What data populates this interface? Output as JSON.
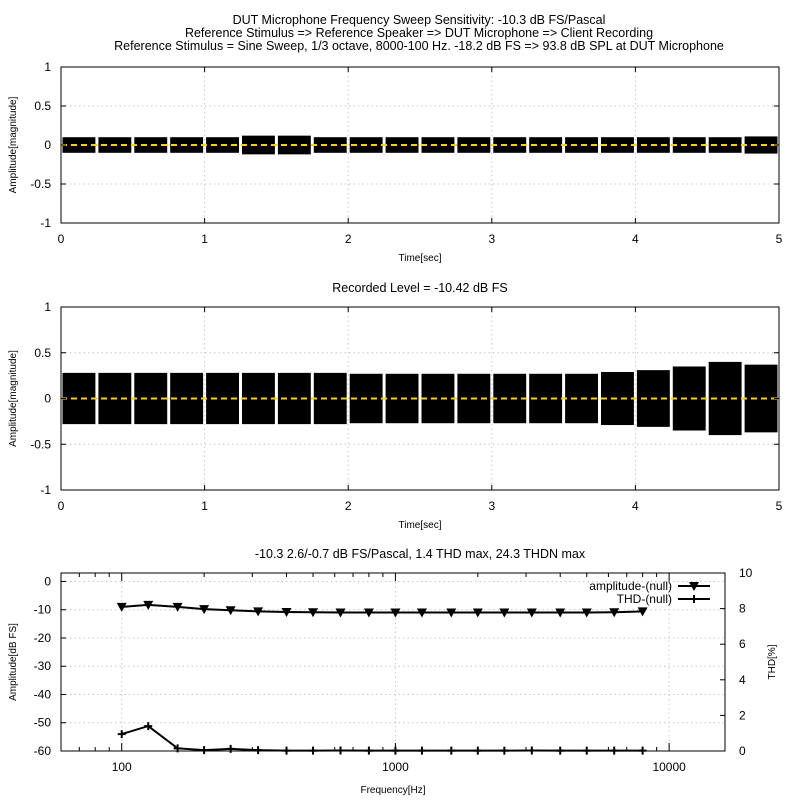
{
  "page_title": [
    "DUT Microphone Frequency Sweep Sensitivity: -10.3 dB FS/Pascal",
    "Reference Stimulus => Reference Speaker => DUT Microphone => Client Recording",
    "Reference Stimulus = Sine Sweep, 1/3 octave, 8000-100 Hz. -18.2 dB FS => 93.8 dB SPL at DUT Microphone"
  ],
  "colors": {
    "signal": "#000000",
    "zero_line": "#ffd000",
    "grid": "#c8c8c8"
  },
  "chart_data": [
    {
      "type": "line",
      "title": "",
      "xlabel": "Time[sec]",
      "ylabel": "Amplitude[magnitude]",
      "xlim": [
        0,
        5
      ],
      "ylim": [
        -1,
        1
      ],
      "xticks": [
        0,
        1,
        2,
        3,
        4,
        5
      ],
      "yticks": [
        -1,
        -0.5,
        0,
        0.5,
        1
      ],
      "grid": true,
      "envelope": {
        "description_of_marks": "sine burst bursts, one per 1/3 octave step",
        "segment_starts": [
          0,
          0.25,
          0.5,
          0.75,
          1.0,
          1.25,
          1.5,
          1.75,
          2.0,
          2.25,
          2.5,
          2.75,
          3.0,
          3.25,
          3.5,
          3.75,
          4.0,
          4.25,
          4.5,
          4.75
        ],
        "segment_amplitudes": [
          0.1,
          0.1,
          0.1,
          0.1,
          0.1,
          0.12,
          0.12,
          0.1,
          0.1,
          0.1,
          0.1,
          0.1,
          0.1,
          0.1,
          0.1,
          0.1,
          0.1,
          0.1,
          0.1,
          0.11
        ],
        "zero_line": 0
      }
    },
    {
      "type": "line",
      "title": "Recorded Level = -10.42 dB FS",
      "xlabel": "Time[sec]",
      "ylabel": "Amplitude[magnitude]",
      "xlim": [
        0,
        5
      ],
      "ylim": [
        -1,
        1
      ],
      "xticks": [
        0,
        1,
        2,
        3,
        4,
        5
      ],
      "yticks": [
        -1,
        -0.5,
        0,
        0.5,
        1
      ],
      "grid": true,
      "envelope": {
        "segment_starts": [
          0,
          0.25,
          0.5,
          0.75,
          1.0,
          1.25,
          1.5,
          1.75,
          2.0,
          2.25,
          2.5,
          2.75,
          3.0,
          3.25,
          3.5,
          3.75,
          4.0,
          4.25,
          4.5,
          4.75
        ],
        "segment_amplitudes": [
          0.28,
          0.28,
          0.28,
          0.28,
          0.28,
          0.28,
          0.28,
          0.28,
          0.27,
          0.27,
          0.27,
          0.27,
          0.27,
          0.27,
          0.27,
          0.29,
          0.31,
          0.35,
          0.4,
          0.37
        ],
        "zero_line": 0
      }
    },
    {
      "type": "line",
      "title": "-10.3 2.6/-0.7 dB FS/Pascal, 1.4 THD max, 24.3 THDN max",
      "xlabel": "Frequency[Hz]",
      "ylabel": "Amplitude[dB FS]",
      "y2label": "THD[%]",
      "xscale": "log",
      "xlim": [
        60,
        16000
      ],
      "ylim": [
        -60,
        3
      ],
      "y2lim": [
        0,
        10
      ],
      "xticks": [
        100,
        1000,
        10000
      ],
      "yticks": [
        0,
        -10,
        -20,
        -30,
        -40,
        -50,
        -60
      ],
      "y2ticks": [
        0,
        2,
        4,
        6,
        8,
        10
      ],
      "grid": true,
      "legend": "top-right",
      "x": [
        100,
        125,
        160,
        200,
        250,
        315,
        400,
        500,
        630,
        800,
        1000,
        1250,
        1600,
        2000,
        2500,
        3150,
        4000,
        5000,
        6300,
        8000
      ],
      "series": [
        {
          "name": "amplitude-(null)",
          "axis": "left",
          "marker": "triangle-down",
          "values": [
            -9.0,
            -8.3,
            -9.0,
            -9.8,
            -10.2,
            -10.6,
            -10.8,
            -10.9,
            -11.0,
            -11.0,
            -11.0,
            -11.0,
            -11.0,
            -11.0,
            -11.0,
            -11.0,
            -11.0,
            -11.0,
            -10.9,
            -10.6
          ]
        },
        {
          "name": "THD-(null)",
          "axis": "right",
          "marker": "plus",
          "values": [
            0.95,
            1.4,
            0.15,
            0.05,
            0.12,
            0.05,
            0.02,
            0.02,
            0.03,
            0.02,
            0.02,
            0.02,
            0.02,
            0.02,
            0.02,
            0.03,
            0.02,
            0.02,
            0.02,
            0.02
          ]
        }
      ]
    }
  ]
}
